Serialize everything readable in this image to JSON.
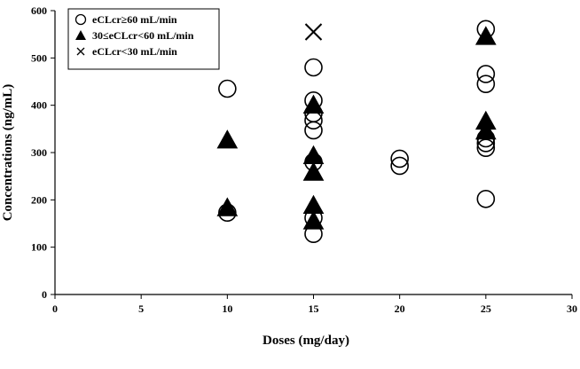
{
  "chart_data": {
    "type": "scatter",
    "title": "",
    "xlabel": "Doses (mg/day)",
    "ylabel": "Concentrations (ng/mL)",
    "xlim": [
      0,
      30
    ],
    "ylim": [
      0,
      600
    ],
    "xticks": [
      0,
      5,
      10,
      15,
      20,
      25,
      30
    ],
    "yticks": [
      0,
      100,
      200,
      300,
      400,
      500,
      600
    ],
    "grid": false,
    "legend_position": "top-left",
    "series": [
      {
        "name": "eCLcr≥60 mL/min",
        "marker": "open-circle",
        "points": [
          {
            "x": 10,
            "y": 435
          },
          {
            "x": 10,
            "y": 173
          },
          {
            "x": 15,
            "y": 480
          },
          {
            "x": 15,
            "y": 410
          },
          {
            "x": 15,
            "y": 383
          },
          {
            "x": 15,
            "y": 368
          },
          {
            "x": 15,
            "y": 347
          },
          {
            "x": 15,
            "y": 280
          },
          {
            "x": 15,
            "y": 162
          },
          {
            "x": 15,
            "y": 128
          },
          {
            "x": 20,
            "y": 287
          },
          {
            "x": 20,
            "y": 272
          },
          {
            "x": 25,
            "y": 561
          },
          {
            "x": 25,
            "y": 466
          },
          {
            "x": 25,
            "y": 445
          },
          {
            "x": 25,
            "y": 330
          },
          {
            "x": 25,
            "y": 320
          },
          {
            "x": 25,
            "y": 310
          },
          {
            "x": 25,
            "y": 202
          }
        ]
      },
      {
        "name": "30≤eCLcr<60 mL/min",
        "marker": "filled-triangle",
        "points": [
          {
            "x": 10,
            "y": 326
          },
          {
            "x": 10,
            "y": 183
          },
          {
            "x": 15,
            "y": 400
          },
          {
            "x": 15,
            "y": 293
          },
          {
            "x": 15,
            "y": 258
          },
          {
            "x": 15,
            "y": 188
          },
          {
            "x": 15,
            "y": 155
          },
          {
            "x": 25,
            "y": 545
          },
          {
            "x": 25,
            "y": 366
          },
          {
            "x": 25,
            "y": 345
          }
        ]
      },
      {
        "name": "eCLcr<30 mL/min",
        "marker": "cross",
        "points": [
          {
            "x": 15,
            "y": 555
          }
        ]
      }
    ]
  }
}
